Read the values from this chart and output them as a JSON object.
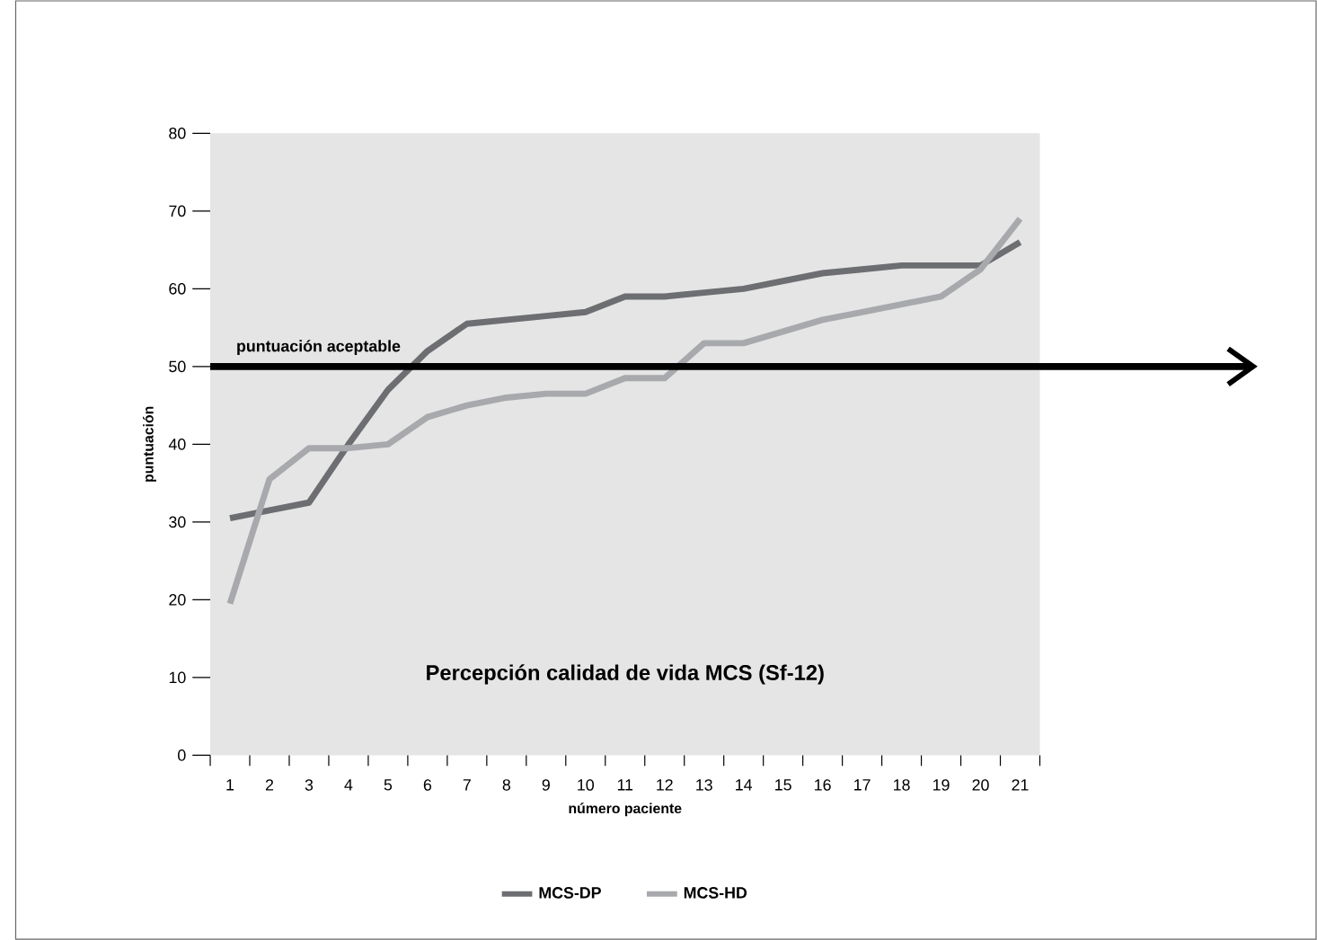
{
  "chart_data": {
    "type": "line",
    "title": "Percepción calidad de vida MCS (Sf-12)",
    "xlabel": "número paciente",
    "ylabel": "puntuación",
    "categories": [
      "1",
      "2",
      "3",
      "4",
      "5",
      "6",
      "7",
      "8",
      "9",
      "10",
      "11",
      "12",
      "13",
      "14",
      "15",
      "16",
      "17",
      "18",
      "19",
      "20",
      "21"
    ],
    "series": [
      {
        "name": "MCS-DP",
        "color": "#6d6e71",
        "values": [
          30.5,
          31.5,
          32.5,
          40,
          47,
          52,
          55.5,
          56,
          56.5,
          57,
          59,
          59,
          59.5,
          60,
          61,
          62,
          62.5,
          63,
          63,
          63,
          66
        ]
      },
      {
        "name": "MCS-HD",
        "color": "#a7a9ac",
        "values": [
          19.5,
          35.5,
          39.5,
          39.5,
          40,
          43.5,
          45,
          46,
          46.5,
          46.5,
          48.5,
          48.5,
          53,
          53,
          54.5,
          56,
          57,
          58,
          59,
          62.5,
          69
        ]
      }
    ],
    "ylim": [
      0,
      80
    ],
    "yticks": [
      0,
      10,
      20,
      30,
      40,
      50,
      60,
      70,
      80
    ],
    "ref_lines": [
      {
        "axis": "y",
        "value": 50,
        "label": "puntuación aceptable",
        "color": "#000000",
        "line_style": "solid"
      }
    ],
    "grid": false,
    "legend": "bottom",
    "marker": "none",
    "line_style": "solid"
  }
}
